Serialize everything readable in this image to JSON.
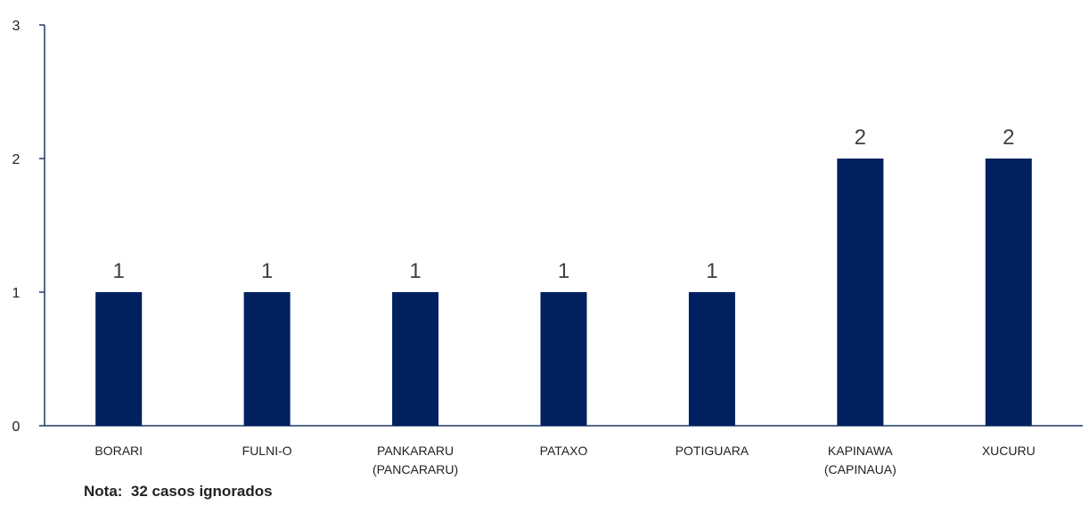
{
  "chart_data": {
    "type": "bar",
    "categories": [
      [
        "BORARI"
      ],
      [
        "FULNI-O"
      ],
      [
        "PANKARARU",
        "(PANCARARU)"
      ],
      [
        "PATAXO"
      ],
      [
        "POTIGUARA"
      ],
      [
        "KAPINAWA",
        "(CAPINAUA)"
      ],
      [
        "XUCURU"
      ]
    ],
    "values": [
      1,
      1,
      1,
      1,
      1,
      2,
      2
    ],
    "data_labels": [
      "1",
      "1",
      "1",
      "1",
      "1",
      "2",
      "2"
    ],
    "yticks": [
      0,
      1,
      2,
      3
    ],
    "ylim": [
      0,
      3
    ],
    "grid": false,
    "bar_color": "#002060",
    "axis_color": "#1F3864"
  },
  "note": "Nota:  32 casos ignorados"
}
